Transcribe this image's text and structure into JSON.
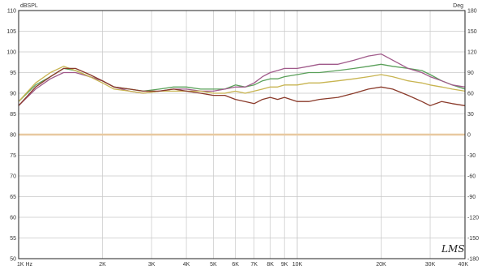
{
  "chart_data": {
    "type": "line",
    "x_scale": "log",
    "x_range": [
      1000,
      40000
    ],
    "y_range": [
      50,
      110
    ],
    "y2_range": [
      -180,
      180
    ],
    "left_unit": "dBSPL",
    "right_unit": "Deg",
    "brand_mark": "LMS",
    "grid": true,
    "x_ticks": [
      {
        "v": 1000,
        "label": "1K Hz"
      },
      {
        "v": 2000,
        "label": "2K"
      },
      {
        "v": 3000,
        "label": "3K"
      },
      {
        "v": 4000,
        "label": "4K"
      },
      {
        "v": 5000,
        "label": "5K"
      },
      {
        "v": 6000,
        "label": "6K"
      },
      {
        "v": 7000,
        "label": "7K"
      },
      {
        "v": 8000,
        "label": "8K"
      },
      {
        "v": 9000,
        "label": "9K"
      },
      {
        "v": 10000,
        "label": "10K"
      },
      {
        "v": 20000,
        "label": "20K"
      },
      {
        "v": 30000,
        "label": "30K"
      },
      {
        "v": 40000,
        "label": "40K"
      }
    ],
    "y_ticks": [
      {
        "v": 110,
        "label": "110"
      },
      {
        "v": 105,
        "label": "105"
      },
      {
        "v": 100,
        "label": "100"
      },
      {
        "v": 95,
        "label": "95"
      },
      {
        "v": 90,
        "label": "90"
      },
      {
        "v": 85,
        "label": "85"
      },
      {
        "v": 80,
        "label": "80"
      },
      {
        "v": 75,
        "label": "75"
      },
      {
        "v": 70,
        "label": "70"
      },
      {
        "v": 65,
        "label": "65"
      },
      {
        "v": 60,
        "label": "60"
      },
      {
        "v": 55,
        "label": "55"
      },
      {
        "v": 50,
        "label": "50"
      }
    ],
    "y2_ticks": [
      {
        "v": 180,
        "label": "180"
      },
      {
        "v": 150,
        "label": "150"
      },
      {
        "v": 120,
        "label": "120"
      },
      {
        "v": 90,
        "label": "90"
      },
      {
        "v": 60,
        "label": "60"
      },
      {
        "v": 30,
        "label": "30"
      },
      {
        "v": 0,
        "label": "0"
      },
      {
        "v": -30,
        "label": "-30"
      },
      {
        "v": -60,
        "label": "-60"
      },
      {
        "v": -90,
        "label": "-90"
      },
      {
        "v": -120,
        "label": "-120"
      },
      {
        "v": -150,
        "label": "-150"
      },
      {
        "v": -180,
        "label": "-180"
      }
    ],
    "reference_line": {
      "y": 80,
      "color": "#e8c9a0"
    },
    "series": [
      {
        "color": "#5aa05a",
        "x": [
          1000,
          1150,
          1300,
          1450,
          1600,
          1800,
          2000,
          2200,
          2500,
          2800,
          3200,
          3600,
          4000,
          4500,
          5000,
          5500,
          6000,
          6500,
          7000,
          7500,
          8000,
          8500,
          9000,
          10000,
          11000,
          12000,
          14000,
          16000,
          18000,
          20000,
          22000,
          25000,
          28000,
          30000,
          33000,
          36000,
          40000
        ],
        "y": [
          88,
          92,
          94,
          96,
          95.5,
          94,
          93,
          91.5,
          91,
          90.5,
          91,
          91.5,
          91.5,
          91,
          91,
          91,
          92,
          91.5,
          92,
          93,
          93.5,
          93.5,
          94,
          94.5,
          95,
          95,
          95.5,
          96,
          96.5,
          97,
          96.5,
          96,
          95.5,
          94.5,
          93,
          92,
          91
        ]
      },
      {
        "color": "#a05a8a",
        "x": [
          1000,
          1150,
          1300,
          1450,
          1600,
          1800,
          2000,
          2200,
          2500,
          2800,
          3200,
          3600,
          4000,
          4500,
          5000,
          5500,
          6000,
          6500,
          7000,
          7500,
          8000,
          8500,
          9000,
          10000,
          11000,
          12000,
          14000,
          16000,
          18000,
          20000,
          22000,
          25000,
          28000,
          30000,
          33000,
          36000,
          40000
        ],
        "y": [
          87,
          91,
          93.5,
          95,
          95,
          94,
          93,
          91.5,
          90.5,
          90,
          90.5,
          91,
          91,
          90.5,
          90.5,
          91,
          91.5,
          91.5,
          92.5,
          94,
          95,
          95.5,
          96,
          96,
          96.5,
          97,
          97,
          98,
          99,
          99.5,
          98,
          96,
          95,
          94,
          93,
          92,
          91.5
        ]
      },
      {
        "color": "#c8b450",
        "x": [
          1000,
          1150,
          1300,
          1450,
          1600,
          1800,
          2000,
          2200,
          2500,
          2800,
          3200,
          3600,
          4000,
          4500,
          5000,
          5500,
          6000,
          6500,
          7000,
          7500,
          8000,
          8500,
          9000,
          10000,
          11000,
          12000,
          14000,
          16000,
          18000,
          20000,
          22000,
          25000,
          28000,
          30000,
          33000,
          36000,
          40000
        ],
        "y": [
          88,
          92.5,
          95,
          96.5,
          95.5,
          94,
          92.5,
          91,
          90.5,
          90,
          90.5,
          90.5,
          90.5,
          90.5,
          90,
          90,
          90.5,
          90,
          90.5,
          91,
          91.5,
          91.5,
          92,
          92,
          92.5,
          92.5,
          93,
          93.5,
          94,
          94.5,
          94,
          93,
          92.5,
          92,
          91.5,
          91,
          90.5
        ]
      },
      {
        "color": "#8a3a2a",
        "x": [
          1000,
          1150,
          1300,
          1450,
          1600,
          1800,
          2000,
          2200,
          2500,
          2800,
          3200,
          3600,
          4000,
          4500,
          5000,
          5500,
          6000,
          6500,
          7000,
          7500,
          8000,
          8500,
          9000,
          10000,
          11000,
          12000,
          14000,
          16000,
          18000,
          20000,
          22000,
          25000,
          28000,
          30000,
          33000,
          36000,
          40000
        ],
        "y": [
          87,
          91.5,
          94,
          96,
          96,
          94.5,
          93,
          91.5,
          91,
          90.5,
          90.5,
          91,
          90.5,
          90,
          89.5,
          89.5,
          88.5,
          88,
          87.5,
          88.5,
          89,
          88.5,
          89,
          88,
          88,
          88.5,
          89,
          90,
          91,
          91.5,
          91,
          89.5,
          88,
          87,
          88,
          87.5,
          87
        ]
      }
    ]
  }
}
